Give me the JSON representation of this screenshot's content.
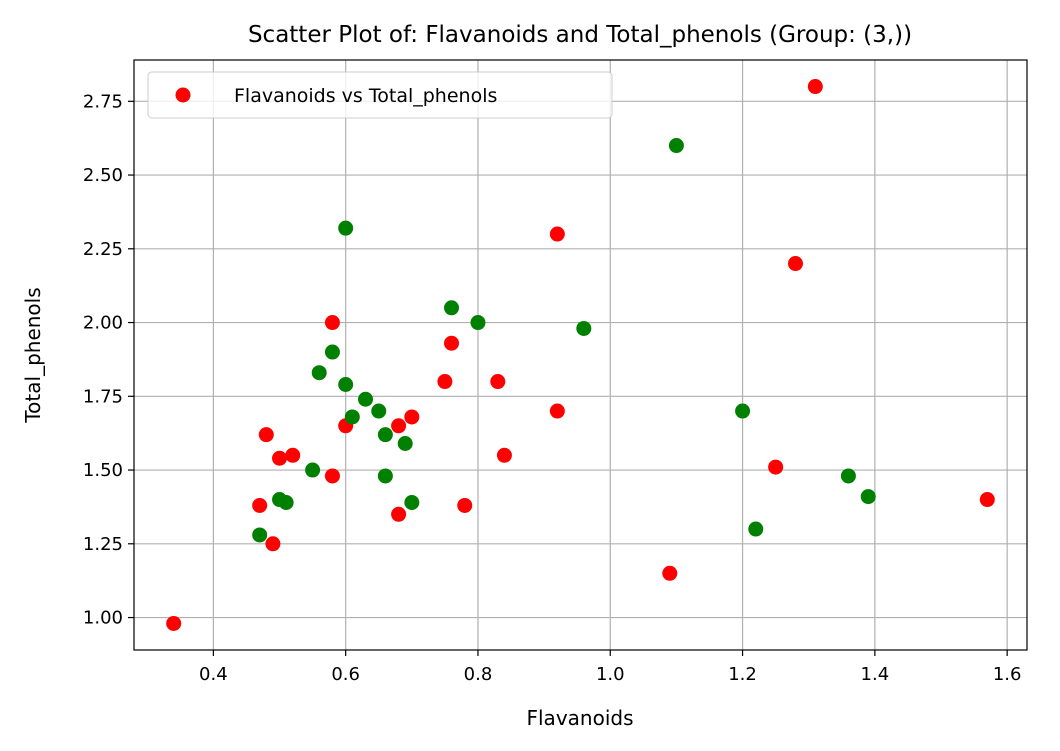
{
  "chart_data": {
    "type": "scatter",
    "title": "Scatter Plot of: Flavanoids and Total_phenols (Group: (3,))",
    "xlabel": "Flavanoids",
    "ylabel": "Total_phenols",
    "xlim": [
      0.28,
      1.63
    ],
    "ylim": [
      0.89,
      2.89
    ],
    "xticks": [
      "0.4",
      "0.6",
      "0.8",
      "1.0",
      "1.2",
      "1.4",
      "1.6"
    ],
    "yticks": [
      "1.00",
      "1.25",
      "1.50",
      "1.75",
      "2.00",
      "2.25",
      "2.50",
      "2.75"
    ],
    "grid": true,
    "legend": {
      "position": "top-left",
      "label": "Flavanoids vs Total_phenols"
    },
    "colors": {
      "red_points": "#ff0000",
      "green_points": "#008000",
      "grid": "#b0b0b0"
    },
    "series": [
      {
        "color": "#ff0000",
        "points": [
          [
            0.34,
            0.98
          ],
          [
            0.47,
            1.38
          ],
          [
            0.48,
            1.62
          ],
          [
            0.49,
            1.25
          ],
          [
            0.5,
            1.54
          ],
          [
            0.52,
            1.55
          ],
          [
            0.58,
            2.0
          ],
          [
            0.58,
            1.48
          ],
          [
            0.6,
            1.65
          ],
          [
            0.68,
            1.65
          ],
          [
            0.68,
            1.35
          ],
          [
            0.7,
            1.68
          ],
          [
            0.75,
            1.8
          ],
          [
            0.76,
            1.93
          ],
          [
            0.78,
            1.38
          ],
          [
            0.83,
            1.8
          ],
          [
            0.84,
            1.55
          ],
          [
            0.92,
            2.3
          ],
          [
            0.92,
            1.7
          ],
          [
            1.09,
            1.15
          ],
          [
            1.25,
            1.51
          ],
          [
            1.28,
            2.2
          ],
          [
            1.31,
            2.8
          ],
          [
            1.57,
            1.4
          ]
        ]
      },
      {
        "color": "#008000",
        "points": [
          [
            0.47,
            1.28
          ],
          [
            0.5,
            1.4
          ],
          [
            0.51,
            1.39
          ],
          [
            0.55,
            1.5
          ],
          [
            0.56,
            1.83
          ],
          [
            0.58,
            1.9
          ],
          [
            0.6,
            2.32
          ],
          [
            0.6,
            1.79
          ],
          [
            0.61,
            1.68
          ],
          [
            0.63,
            1.74
          ],
          [
            0.65,
            1.7
          ],
          [
            0.66,
            1.62
          ],
          [
            0.66,
            1.48
          ],
          [
            0.69,
            1.59
          ],
          [
            0.7,
            1.39
          ],
          [
            0.76,
            2.05
          ],
          [
            0.8,
            2.0
          ],
          [
            0.96,
            1.98
          ],
          [
            1.1,
            2.6
          ],
          [
            1.2,
            1.7
          ],
          [
            1.22,
            1.3
          ],
          [
            1.36,
            1.48
          ],
          [
            1.39,
            1.41
          ]
        ]
      }
    ]
  }
}
